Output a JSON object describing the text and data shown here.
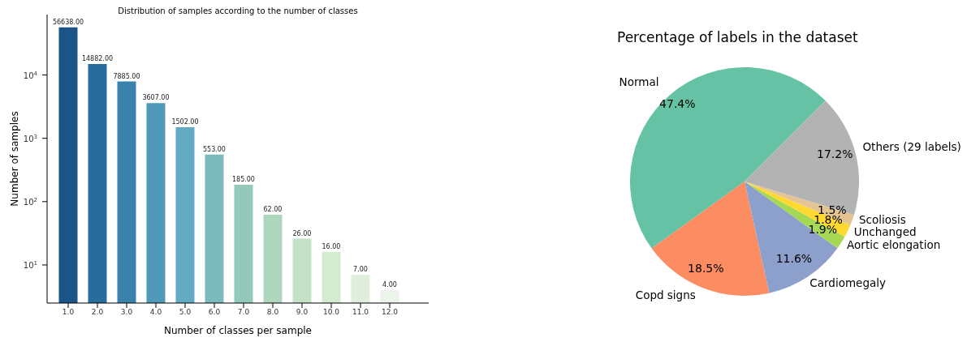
{
  "chart_data": [
    {
      "type": "bar",
      "title": "Distribution of samples according to the number of classes",
      "xlabel": "Number of classes per sample",
      "ylabel": "Number of samples",
      "categories": [
        "1.0",
        "2.0",
        "3.0",
        "4.0",
        "5.0",
        "6.0",
        "7.0",
        "8.0",
        "9.0",
        "10.0",
        "11.0",
        "12.0"
      ],
      "values": [
        56638,
        14882,
        7885,
        3607,
        1502,
        553,
        185,
        62,
        26,
        16,
        7,
        4
      ],
      "value_labels": [
        "56638.00",
        "14882.00",
        "7885.00",
        "3607.00",
        "1502.00",
        "553.00",
        "185.00",
        "62.00",
        "26.00",
        "16.00",
        "7.00",
        "4.00"
      ],
      "colors": [
        "#1b5587",
        "#276c9c",
        "#3882ab",
        "#4e98b8",
        "#63abc3",
        "#7bbbbd",
        "#93c9ba",
        "#aed6bc",
        "#c4e2c5",
        "#d4ead1",
        "#e0efdb",
        "#ebf4e8"
      ],
      "log": "y",
      "ylim": [
        2.5,
        90000
      ],
      "yticks": [
        {
          "value": 10,
          "label": "10$^{1}$"
        },
        {
          "value": 100,
          "label": "10$^{2}$"
        },
        {
          "value": 1000,
          "label": "10$^{3}$"
        },
        {
          "value": 10000,
          "label": "10$^{4}$"
        }
      ]
    },
    {
      "type": "pie",
      "title": "Percentage of labels in the dataset",
      "categories": [
        "Normal",
        "Copd signs",
        "Cardiomegaly",
        "Aortic elongation",
        "Unchanged",
        "Scoliosis",
        "Others (29 labels)"
      ],
      "values": [
        47.4,
        18.5,
        11.6,
        1.9,
        1.8,
        1.5,
        17.2
      ],
      "value_labels": [
        "47.4%",
        "18.5%",
        "11.6%",
        "1.9%",
        "1.8%",
        "1.5%",
        "17.2%"
      ],
      "colors": [
        "#66c2a5",
        "#fc8d62",
        "#8da0cb",
        "#a6d854",
        "#ffd92f",
        "#e5c494",
        "#b3b3b3"
      ]
    }
  ]
}
